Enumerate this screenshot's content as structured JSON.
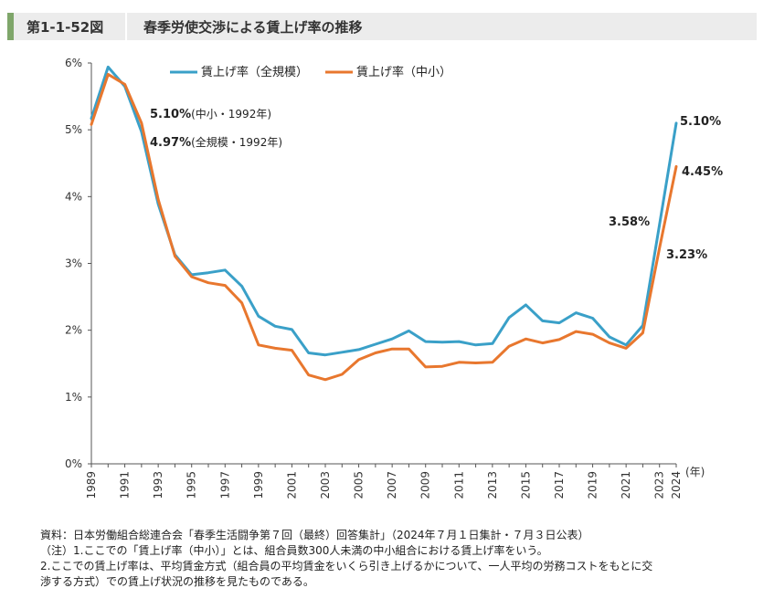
{
  "header": {
    "figure_number": "第1-1-52図",
    "title": "春季労使交渉による賃上げ率の推移"
  },
  "chart_data": {
    "type": "line",
    "title": "",
    "xlabel": "(年)",
    "ylabel": "",
    "ylim": [
      0,
      6
    ],
    "y_ticks": [
      "0%",
      "1%",
      "2%",
      "3%",
      "4%",
      "5%",
      "6%"
    ],
    "x_ticks": [
      "1989",
      "1991",
      "1993",
      "1995",
      "1997",
      "1999",
      "2001",
      "2003",
      "2005",
      "2007",
      "2009",
      "2011",
      "2013",
      "2015",
      "2017",
      "2019",
      "2021",
      "2023",
      "2024"
    ],
    "x": [
      1989,
      1990,
      1991,
      1992,
      1993,
      1994,
      1995,
      1996,
      1997,
      1998,
      1999,
      2000,
      2001,
      2002,
      2003,
      2004,
      2005,
      2006,
      2007,
      2008,
      2009,
      2010,
      2011,
      2012,
      2013,
      2014,
      2015,
      2016,
      2017,
      2018,
      2019,
      2020,
      2021,
      2022,
      2023,
      2024
    ],
    "legend_position": "top",
    "grid": false,
    "series": [
      {
        "name": "賃上げ率（全規模）",
        "color": "#3aa0c8",
        "values": [
          5.17,
          5.94,
          5.65,
          4.97,
          3.89,
          3.13,
          2.83,
          2.86,
          2.9,
          2.66,
          2.21,
          2.06,
          2.01,
          1.66,
          1.63,
          1.67,
          1.71,
          1.79,
          1.87,
          1.99,
          1.83,
          1.82,
          1.83,
          1.78,
          1.8,
          2.19,
          2.38,
          2.14,
          2.11,
          2.26,
          2.18,
          1.9,
          1.78,
          2.07,
          3.58,
          5.1
        ]
      },
      {
        "name": "賃上げ率（中小）",
        "color": "#e8772e",
        "values": [
          5.08,
          5.83,
          5.68,
          5.1,
          3.96,
          3.11,
          2.8,
          2.71,
          2.67,
          2.41,
          1.78,
          1.73,
          1.7,
          1.33,
          1.26,
          1.34,
          1.56,
          1.66,
          1.72,
          1.72,
          1.45,
          1.46,
          1.52,
          1.51,
          1.52,
          1.76,
          1.87,
          1.81,
          1.86,
          1.98,
          1.94,
          1.81,
          1.73,
          1.96,
          3.23,
          4.45
        ]
      }
    ],
    "annotations": [
      {
        "text": "5.10%",
        "sub": "(中小・1992年)",
        "x": 1992,
        "y": 5.1
      },
      {
        "text": "4.97%",
        "sub": "(全規模・1992年)",
        "x": 1992,
        "y": 4.97
      },
      {
        "text": "3.58%",
        "sub": "",
        "x": 2023,
        "y": 3.58
      },
      {
        "text": "3.23%",
        "sub": "",
        "x": 2023,
        "y": 3.23
      },
      {
        "text": "5.10%",
        "sub": "",
        "x": 2024,
        "y": 5.1
      },
      {
        "text": "4.45%",
        "sub": "",
        "x": 2024,
        "y": 4.45
      }
    ]
  },
  "notes": [
    "資料：日本労働組合総連合会「春季生活闘争第７回（最終）回答集計」（2024年７月１日集計・７月３日公表）",
    "（注）1.ここでの「賃上げ率（中小）」とは、組合員数300人未満の中小組合における賃上げ率をいう。",
    "2.ここでの賃上げ率は、平均賃金方式（組合員の平均賃金をいくら引き上げるかについて、一人平均の労務コストをもとに交",
    "渉する方式）での賃上げ状況の推移を見たものである。"
  ]
}
